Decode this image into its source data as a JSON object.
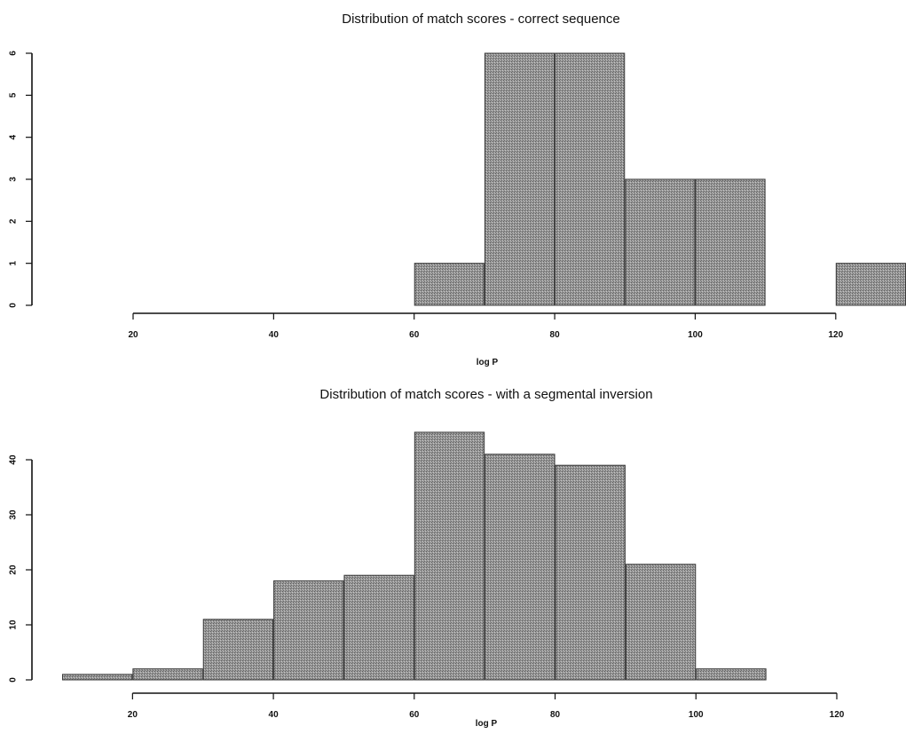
{
  "chart_data": [
    {
      "type": "bar",
      "title": "Distribution of match scores - correct sequence",
      "xlabel": "log P",
      "ylabel": "",
      "bin_edges": [
        60,
        70,
        80,
        90,
        100,
        110,
        120,
        130
      ],
      "values": [
        1,
        6,
        6,
        3,
        3,
        0,
        1
      ],
      "xlim": [
        20,
        130
      ],
      "ylim": [
        0,
        6
      ],
      "xticks": [
        "20",
        "40",
        "60",
        "80",
        "100",
        "120"
      ],
      "yticks": [
        "0",
        "1",
        "2",
        "3",
        "4",
        "5",
        "6"
      ],
      "grid": false
    },
    {
      "type": "bar",
      "title": "Distribution of match scores - with a segmental inversion",
      "xlabel": "log P",
      "ylabel": "",
      "bin_edges": [
        10,
        20,
        30,
        40,
        50,
        60,
        70,
        80,
        90,
        100,
        110
      ],
      "values": [
        1,
        2,
        11,
        18,
        19,
        45,
        41,
        39,
        21,
        2
      ],
      "xlim": [
        10,
        120
      ],
      "ylim": [
        0,
        45
      ],
      "xticks": [
        "20",
        "40",
        "60",
        "80",
        "100",
        "120"
      ],
      "yticks": [
        "0",
        "10",
        "20",
        "30",
        "40"
      ],
      "grid": false
    }
  ]
}
